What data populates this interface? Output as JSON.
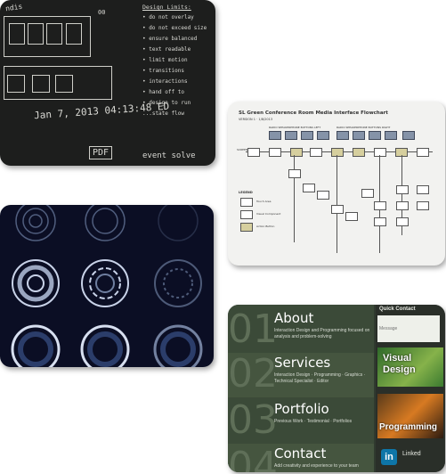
{
  "chalkboard": {
    "lines_right": [
      "Design Limits:",
      "• do not overlay",
      "• do not exceed size",
      "• ensure balanced",
      "• text readable",
      "• limit motion",
      "• transitions",
      "• interactions",
      "• hand off to",
      "• design to run",
      "  ...state flow"
    ],
    "lines_left": [
      "Jan 7, 2013  04:13:48 ED",
      "PDF",
      "event solve"
    ],
    "top_left": "ndis",
    "label_00": "00"
  },
  "flowchart": {
    "title": "SL Green Conference Room Media Interface Flowchart",
    "version": "VERSION 1 · 1/8/2013",
    "header_left": "RADIO SPEAKERPHONE BUTTONS LEFT",
    "header_right": "RADIO SPEAKERPHONE BUTTONS RIGHT",
    "legend_title": "LEGEND",
    "legend_items": [
      "Touch Area",
      "Visual Component",
      "Action Button"
    ],
    "screen_label": "SCREEN 1"
  },
  "portfolio": {
    "sections": [
      {
        "num": "01",
        "title": "About",
        "sub": "Interaction Design and Programming focused on analysis and problem-solving"
      },
      {
        "num": "02",
        "title": "Services",
        "sub": "Interaction Design · Programming · Graphics · Technical Specialist · Editor"
      },
      {
        "num": "03",
        "title": "Portfolio",
        "sub": "Previous Work · Testimonial · Portfolios"
      },
      {
        "num": "04",
        "title": "Contact",
        "sub": "Add creativity and experience to your team"
      }
    ],
    "quick_contact": {
      "title": "Quick Contact",
      "placeholder": "Message"
    },
    "tiles": [
      "Visual Design",
      "Programming"
    ],
    "linkedin": {
      "badge": "in",
      "label": "Linked"
    }
  },
  "colors": {
    "chalk_bg": "#1d1e1d",
    "flow_bg": "#f2f2f0",
    "circles_bg": "#0b0e24",
    "portfolio_bg": "#303a2f"
  }
}
